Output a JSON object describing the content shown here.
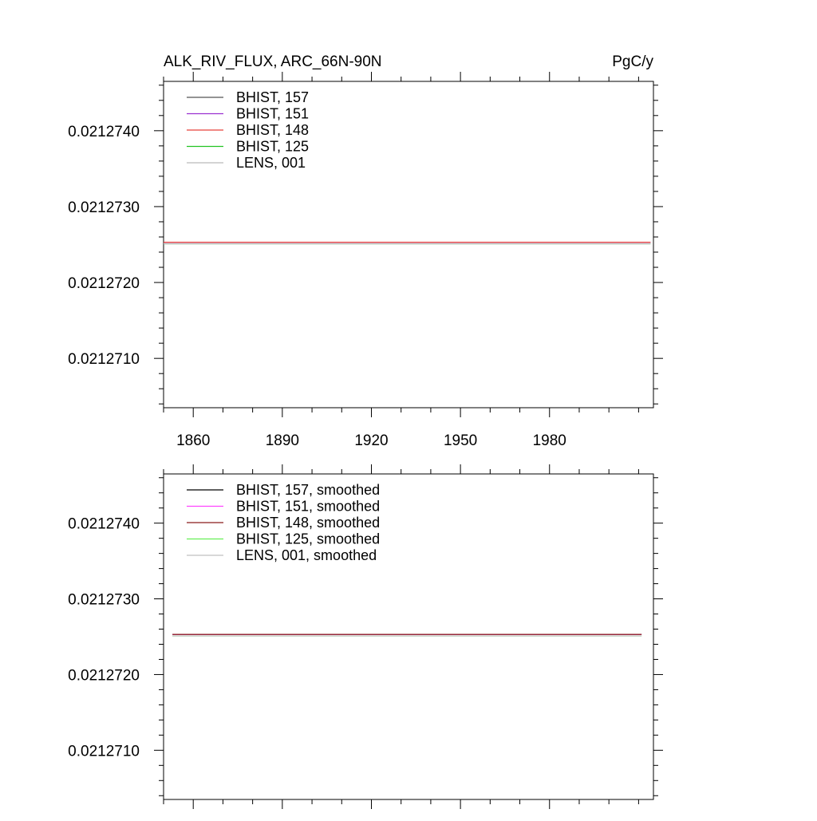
{
  "chart_data": [
    {
      "type": "line",
      "title": "ALK_RIV_FLUX, ARC_66N-90N",
      "units": "PgC/y",
      "xticks": [
        1860,
        1890,
        1920,
        1950,
        1980
      ],
      "xlim": [
        1850,
        2015
      ],
      "ylim": [
        0.02127035,
        0.02127465
      ],
      "yticks": [
        "0.0212710",
        "0.0212720",
        "0.0212730",
        "0.0212740"
      ],
      "ytick_values": [
        0.021271,
        0.021272,
        0.021273,
        0.021274
      ],
      "grid": false,
      "legend_position": "top-left",
      "series": [
        {
          "name": "BHIST, 157",
          "color": "#555555",
          "x": [
            1850,
            2014
          ],
          "values": [
            0.02127253,
            0.02127253
          ]
        },
        {
          "name": "BHIST, 151",
          "color": "#9b30d0",
          "x": [
            1850,
            2014
          ],
          "values": [
            0.02127253,
            0.02127253
          ]
        },
        {
          "name": "BHIST, 148",
          "color": "#e8403a",
          "x": [
            1850,
            2014
          ],
          "values": [
            0.02127253,
            0.02127253
          ]
        },
        {
          "name": "BHIST, 125",
          "color": "#22c322",
          "x": [
            1850,
            2014
          ],
          "values": [
            0.02127251,
            0.02127251
          ]
        },
        {
          "name": "LENS, 001",
          "color": "#bbbbbb",
          "x": [
            1850,
            2014
          ],
          "values": [
            0.02127251,
            0.02127251
          ]
        }
      ]
    },
    {
      "type": "line",
      "xticks": [
        1860,
        1890,
        1920,
        1950,
        1980
      ],
      "xlim": [
        1850,
        2015
      ],
      "ylim": [
        0.02127035,
        0.02127465
      ],
      "yticks": [
        "0.0212710",
        "0.0212720",
        "0.0212730",
        "0.0212740"
      ],
      "ytick_values": [
        0.021271,
        0.021272,
        0.021273,
        0.021274
      ],
      "grid": false,
      "legend_position": "top-left",
      "series": [
        {
          "name": "BHIST, 157, smoothed",
          "color": "#000000",
          "x": [
            1853,
            2011
          ],
          "values": [
            0.02127253,
            0.02127253
          ]
        },
        {
          "name": "BHIST, 151, smoothed",
          "color": "#ff44ff",
          "x": [
            1853,
            2011
          ],
          "values": [
            0.02127253,
            0.02127253
          ]
        },
        {
          "name": "BHIST, 148, smoothed",
          "color": "#8b1a1a",
          "x": [
            1853,
            2011
          ],
          "values": [
            0.02127253,
            0.02127253
          ]
        },
        {
          "name": "BHIST, 125, smoothed",
          "color": "#66ee55",
          "x": [
            1853,
            2011
          ],
          "values": [
            0.02127251,
            0.02127251
          ]
        },
        {
          "name": "LENS, 001, smoothed",
          "color": "#c0c0c0",
          "x": [
            1853,
            2011
          ],
          "values": [
            0.02127251,
            0.02127251
          ]
        }
      ]
    }
  ]
}
